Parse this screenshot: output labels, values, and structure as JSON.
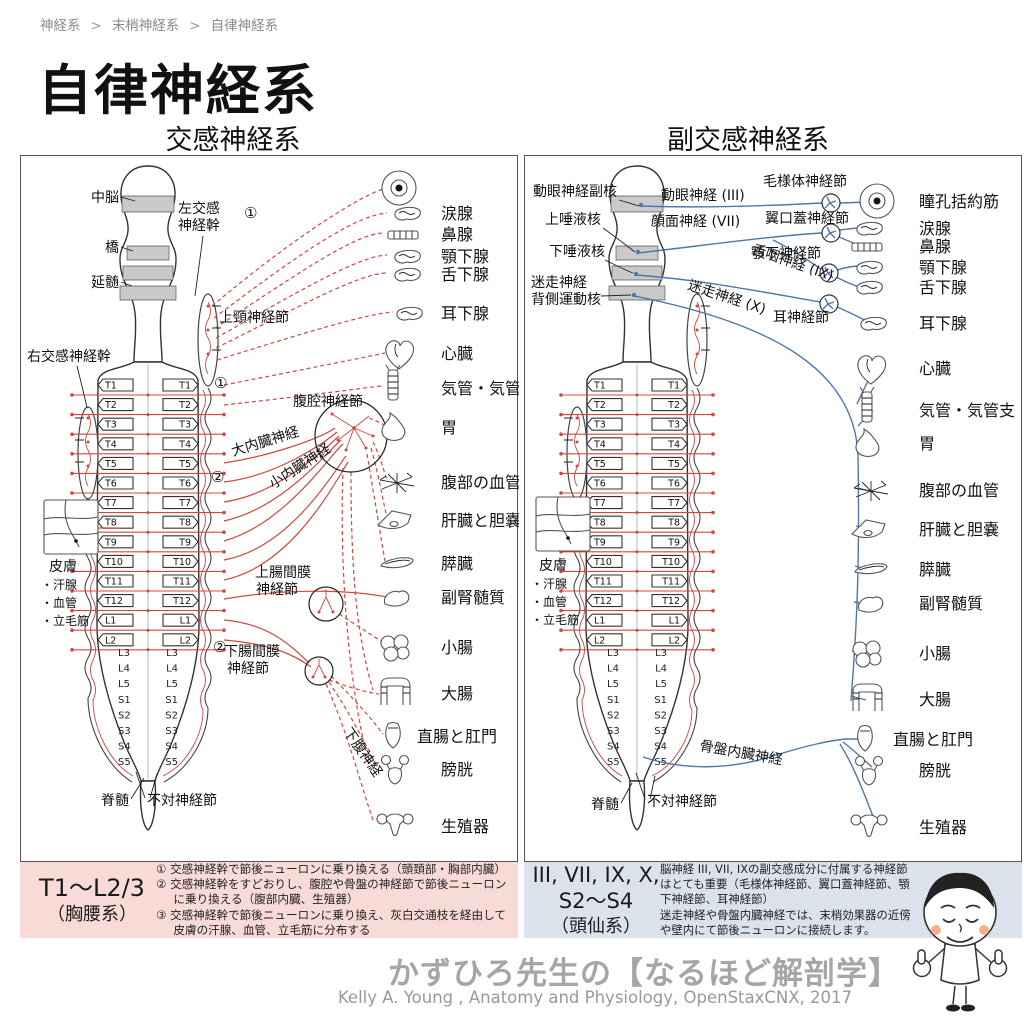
{
  "breadcrumb": {
    "items": [
      "神経系",
      "末梢神経系",
      "自律神経系"
    ],
    "separator": ">"
  },
  "title": "自律神経系",
  "colors": {
    "sympathetic_red": "#cf4840",
    "parasympathetic_blue": "#4f77ab",
    "note_pink_bg": "#f8dbd7",
    "note_blue_bg": "#dbe2ec",
    "brainstem_band_gray": "#c9c9c9"
  },
  "vertebrae": {
    "boxes": [
      "T1",
      "T2",
      "T3",
      "T4",
      "T5",
      "T6",
      "T7",
      "T8",
      "T9",
      "T10",
      "T11",
      "T12",
      "L1",
      "L2"
    ],
    "taper": [
      "L3",
      "L4",
      "L5",
      "S1",
      "S2",
      "S3",
      "S4",
      "S5"
    ]
  },
  "sym": {
    "header": "交感神経系",
    "labels": {
      "midbrain": "中脳",
      "pons": "橋",
      "medulla": "延髄",
      "right_trunk": "右交感神経幹",
      "left_trunk1": "左交感",
      "left_trunk2": "神経幹",
      "scg": "上頸神経節",
      "celiac": "腹腔神経節",
      "greater": "大内臓神経",
      "lesser": "小内臓神経",
      "sup_mes1": "上腸間膜",
      "sup_mes2": "神経節",
      "inf_mes1": "下腸間膜",
      "inf_mes2": "神経節",
      "hypogastric": "下腹神経",
      "skin": "皮膚",
      "skin_items": [
        "・汗腺",
        "・血管",
        "・立毛筋"
      ],
      "cord": "脊髄",
      "impar": "不対神経節",
      "m1": "①",
      "m2": "②",
      "m3": "③"
    },
    "organs": [
      "涙腺",
      "鼻腺",
      "顎下腺",
      "舌下腺",
      "耳下腺",
      "心臓",
      "気管・気管支",
      "胃",
      "腹部の血管",
      "肝臓と胆嚢",
      "膵臓",
      "副腎髄質",
      "小腸",
      "大腸",
      "直腸と肛門",
      "膀胱",
      "生殖器"
    ]
  },
  "para": {
    "header": "副交感神経系",
    "labels": {
      "ew": "動眼神経副核",
      "ssn": "上唾液核",
      "isn": "下唾液核",
      "dmv1": "迷走神経",
      "dmv2": "背側運動核",
      "cn3": "動眼神経 (III)",
      "cn7": "顔面神経 (VII)",
      "cn9": "舌咽神経 (IX)",
      "cn10": "迷走神経 (X)",
      "ciliary": "毛様体神経節",
      "pteryg": "翼口蓋神経節",
      "submand": "顎下神経節",
      "otic": "耳神経節",
      "pelvic": "骨盤内臓神経",
      "skin": "皮膚",
      "skin_items": [
        "・汗腺",
        "・血管",
        "・立毛筋"
      ],
      "cord": "脊髄",
      "impar": "不対神経節"
    },
    "organs": [
      "瞳孔括約筋",
      "涙腺",
      "鼻腺",
      "顎下腺",
      "舌下腺",
      "耳下腺",
      "心臓",
      "気管・気管支",
      "胃",
      "腹部の血管",
      "肝臓と胆嚢",
      "膵臓",
      "副腎髄質",
      "小腸",
      "大腸",
      "直腸と肛門",
      "膀胱",
      "生殖器"
    ]
  },
  "notes": {
    "sym": {
      "range": "T1〜L2/3",
      "system": "（胸腰系）",
      "items": [
        "① 交感神経幹で節後ニューロンに乗り換える（頭頚部・胸部内臓）",
        "② 交感神経幹をすどおりし、腹腔や骨盤の神経節で節後ニューロンに乗り換える（腹部内臓、生殖器）",
        "③ 交感神経幹で節後ニューロンに乗り換え、灰白交通枝を経由して皮膚の汗腺、血管、立毛筋に分布する"
      ]
    },
    "para": {
      "range1": "III, VII, IX, X,",
      "range2": "S2〜S4",
      "system": "（頭仙系）",
      "lines": [
        "脳神経 III, VII, IXの副交感成分に付属する神経節はとても重要（毛様体神経節、翼口蓋神経節、顎下神経節、耳神経節）",
        "迷走神経や骨盤内臓神経では、末梢効果器の近傍や壁内にて節後ニューロンに接続します。"
      ]
    }
  },
  "footer": {
    "brand": "かずひろ先生の【なるほど解剖学】",
    "credit": "Kelly A. Young , Anatomy and Physiology, OpenStaxCNX, 2017"
  }
}
